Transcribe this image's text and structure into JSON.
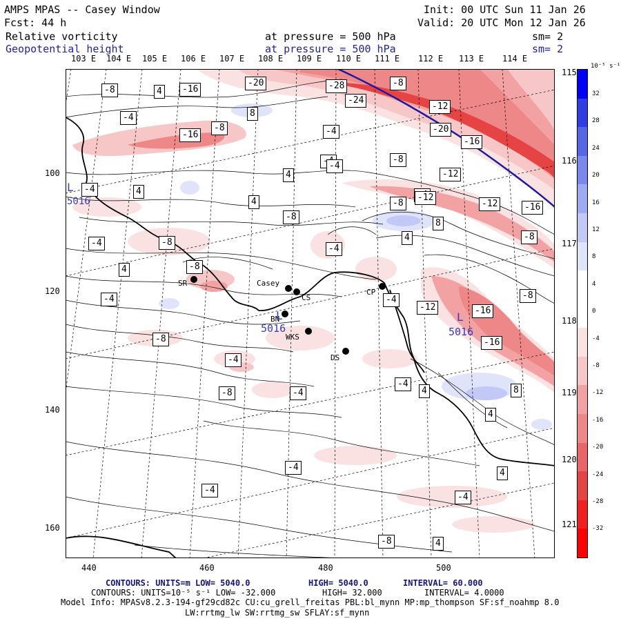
{
  "header": {
    "title": "AMPS MPAS -- Casey Window",
    "init": "Init: 00 UTC Sun 11 Jan 26",
    "fcst": "Fcst:    44 h",
    "valid": "Valid: 20 UTC Mon 12 Jan 26",
    "field1_name": "Relative vorticity",
    "field1_level": "at pressure =  500 hPa",
    "field1_sm": "sm= 2",
    "field2_name": "Geopotential height",
    "field2_level": "at pressure =  500 hPa",
    "field2_sm": "sm= 2"
  },
  "lon_top": [
    "103 E",
    "104 E",
    "105 E",
    "106 E",
    "107 E",
    "108 E",
    "109 E",
    "110 E",
    "111 E",
    "112 E",
    "113 E",
    "114 E"
  ],
  "lon_right": [
    "115 E",
    "116 E",
    "117 E",
    "118 E",
    "119 E",
    "120 E",
    "121 E"
  ],
  "y_ticks": [
    "100",
    "120",
    "140",
    "160"
  ],
  "x_ticks": [
    "440",
    "460",
    "480",
    "500"
  ],
  "stations": [
    "SR",
    "Casey",
    "CS",
    "BN",
    "WKS",
    "CP",
    "DS"
  ],
  "lows": [
    {
      "symbol": "L",
      "value": "5016"
    },
    {
      "symbol": "L",
      "value": "5016"
    },
    {
      "symbol": "L",
      "value": "5016"
    }
  ],
  "contour_labels": [
    "-8",
    "4",
    "-16",
    "-20",
    "-28",
    "-24",
    "-8",
    "-12",
    "-20",
    "-16",
    "-4",
    "8",
    "-8",
    "-16",
    "-4",
    "-4",
    "-8",
    "-12",
    "-4",
    "4",
    "-8",
    "4",
    "4",
    "-12",
    "-8",
    "-12",
    "-16",
    "4",
    "8",
    "-4",
    "-8",
    "-4",
    "4",
    "-8",
    "-4",
    "-4",
    "-8",
    "-12",
    "-16",
    "-8",
    "-16",
    "-4",
    "-8",
    "-4",
    "-4",
    "4",
    "8",
    "4",
    "-4",
    "4",
    "-4",
    "-4",
    "-8",
    "4",
    "-4",
    "-4",
    "-8"
  ],
  "colorbar": {
    "unit": "10⁻⁵ s⁻¹",
    "labels": [
      "32",
      "28",
      "24",
      "20",
      "16",
      "12",
      "8",
      "4",
      "0",
      "-4",
      "-8",
      "-12",
      "-16",
      "-20",
      "-24",
      "-28",
      "-32"
    ],
    "colors": [
      "#0000ff",
      "#2f3fe6",
      "#5566e6",
      "#7a88ee",
      "#9eaaf2",
      "#c2c9f7",
      "#e0e4fb",
      "#ffffff",
      "#ffffff",
      "#fbe2e2",
      "#f7c6c6",
      "#f2a2a2",
      "#ee8888",
      "#ea6666",
      "#e64444",
      "#f21f1f",
      "#ff0000"
    ]
  },
  "footer": {
    "line1_a": "CONTOURS:  UNITS=m  LOW=  5040.0",
    "line1_b": "HIGH=  5040.0",
    "line1_c": "INTERVAL=   60.000",
    "line2_a": "CONTOURS:  UNITS=10⁻⁵ s⁻¹  LOW=  -32.000",
    "line2_b": "HIGH=   32.000",
    "line2_c": "INTERVAL=   4.0000",
    "line3": "Model Info: MPASv8.2.3-194-gf29cd82c CU:cu_grell_freitas PBL:bl_mynn MP:mp_thompson SF:sf_noahmp 8.0",
    "line4": "LW:rrtmg_lw SW:rrtmg_sw SFLAY:sf_mynn"
  }
}
